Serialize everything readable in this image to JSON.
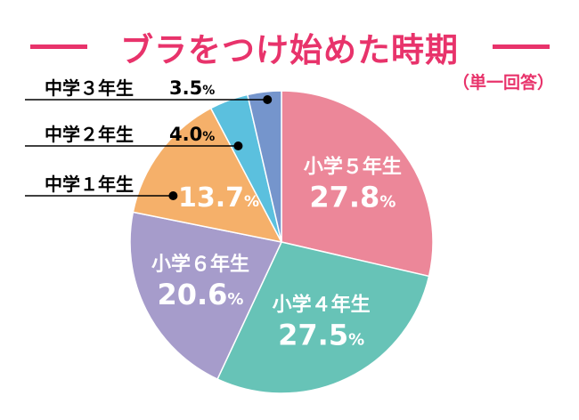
{
  "chart_data": {
    "type": "pie",
    "title": "ブラをつけ始めた時期",
    "subtitle": "（単一回答）",
    "slices": [
      {
        "label": "小学５年生",
        "value": 27.8,
        "color": "#ec8799",
        "label_position": "inside"
      },
      {
        "label": "小学４年生",
        "value": 27.5,
        "color": "#67c3b7",
        "label_position": "inside"
      },
      {
        "label": "小学６年生",
        "value": 20.6,
        "color": "#a69ccb",
        "label_position": "inside"
      },
      {
        "label": "中学１年生",
        "value": 13.7,
        "color": "#f5b06a",
        "label_position": "outside-left"
      },
      {
        "label": "中学２年生",
        "value": 4.0,
        "color": "#5bc0de",
        "label_position": "outside-left"
      },
      {
        "label": "中学３年生",
        "value": 3.5,
        "color": "#7595cc",
        "label_position": "outside-left"
      }
    ],
    "value_suffix": "%",
    "start": "12 o'clock",
    "direction": "clockwise",
    "legend": "none",
    "accent_color": "#e8336b"
  }
}
